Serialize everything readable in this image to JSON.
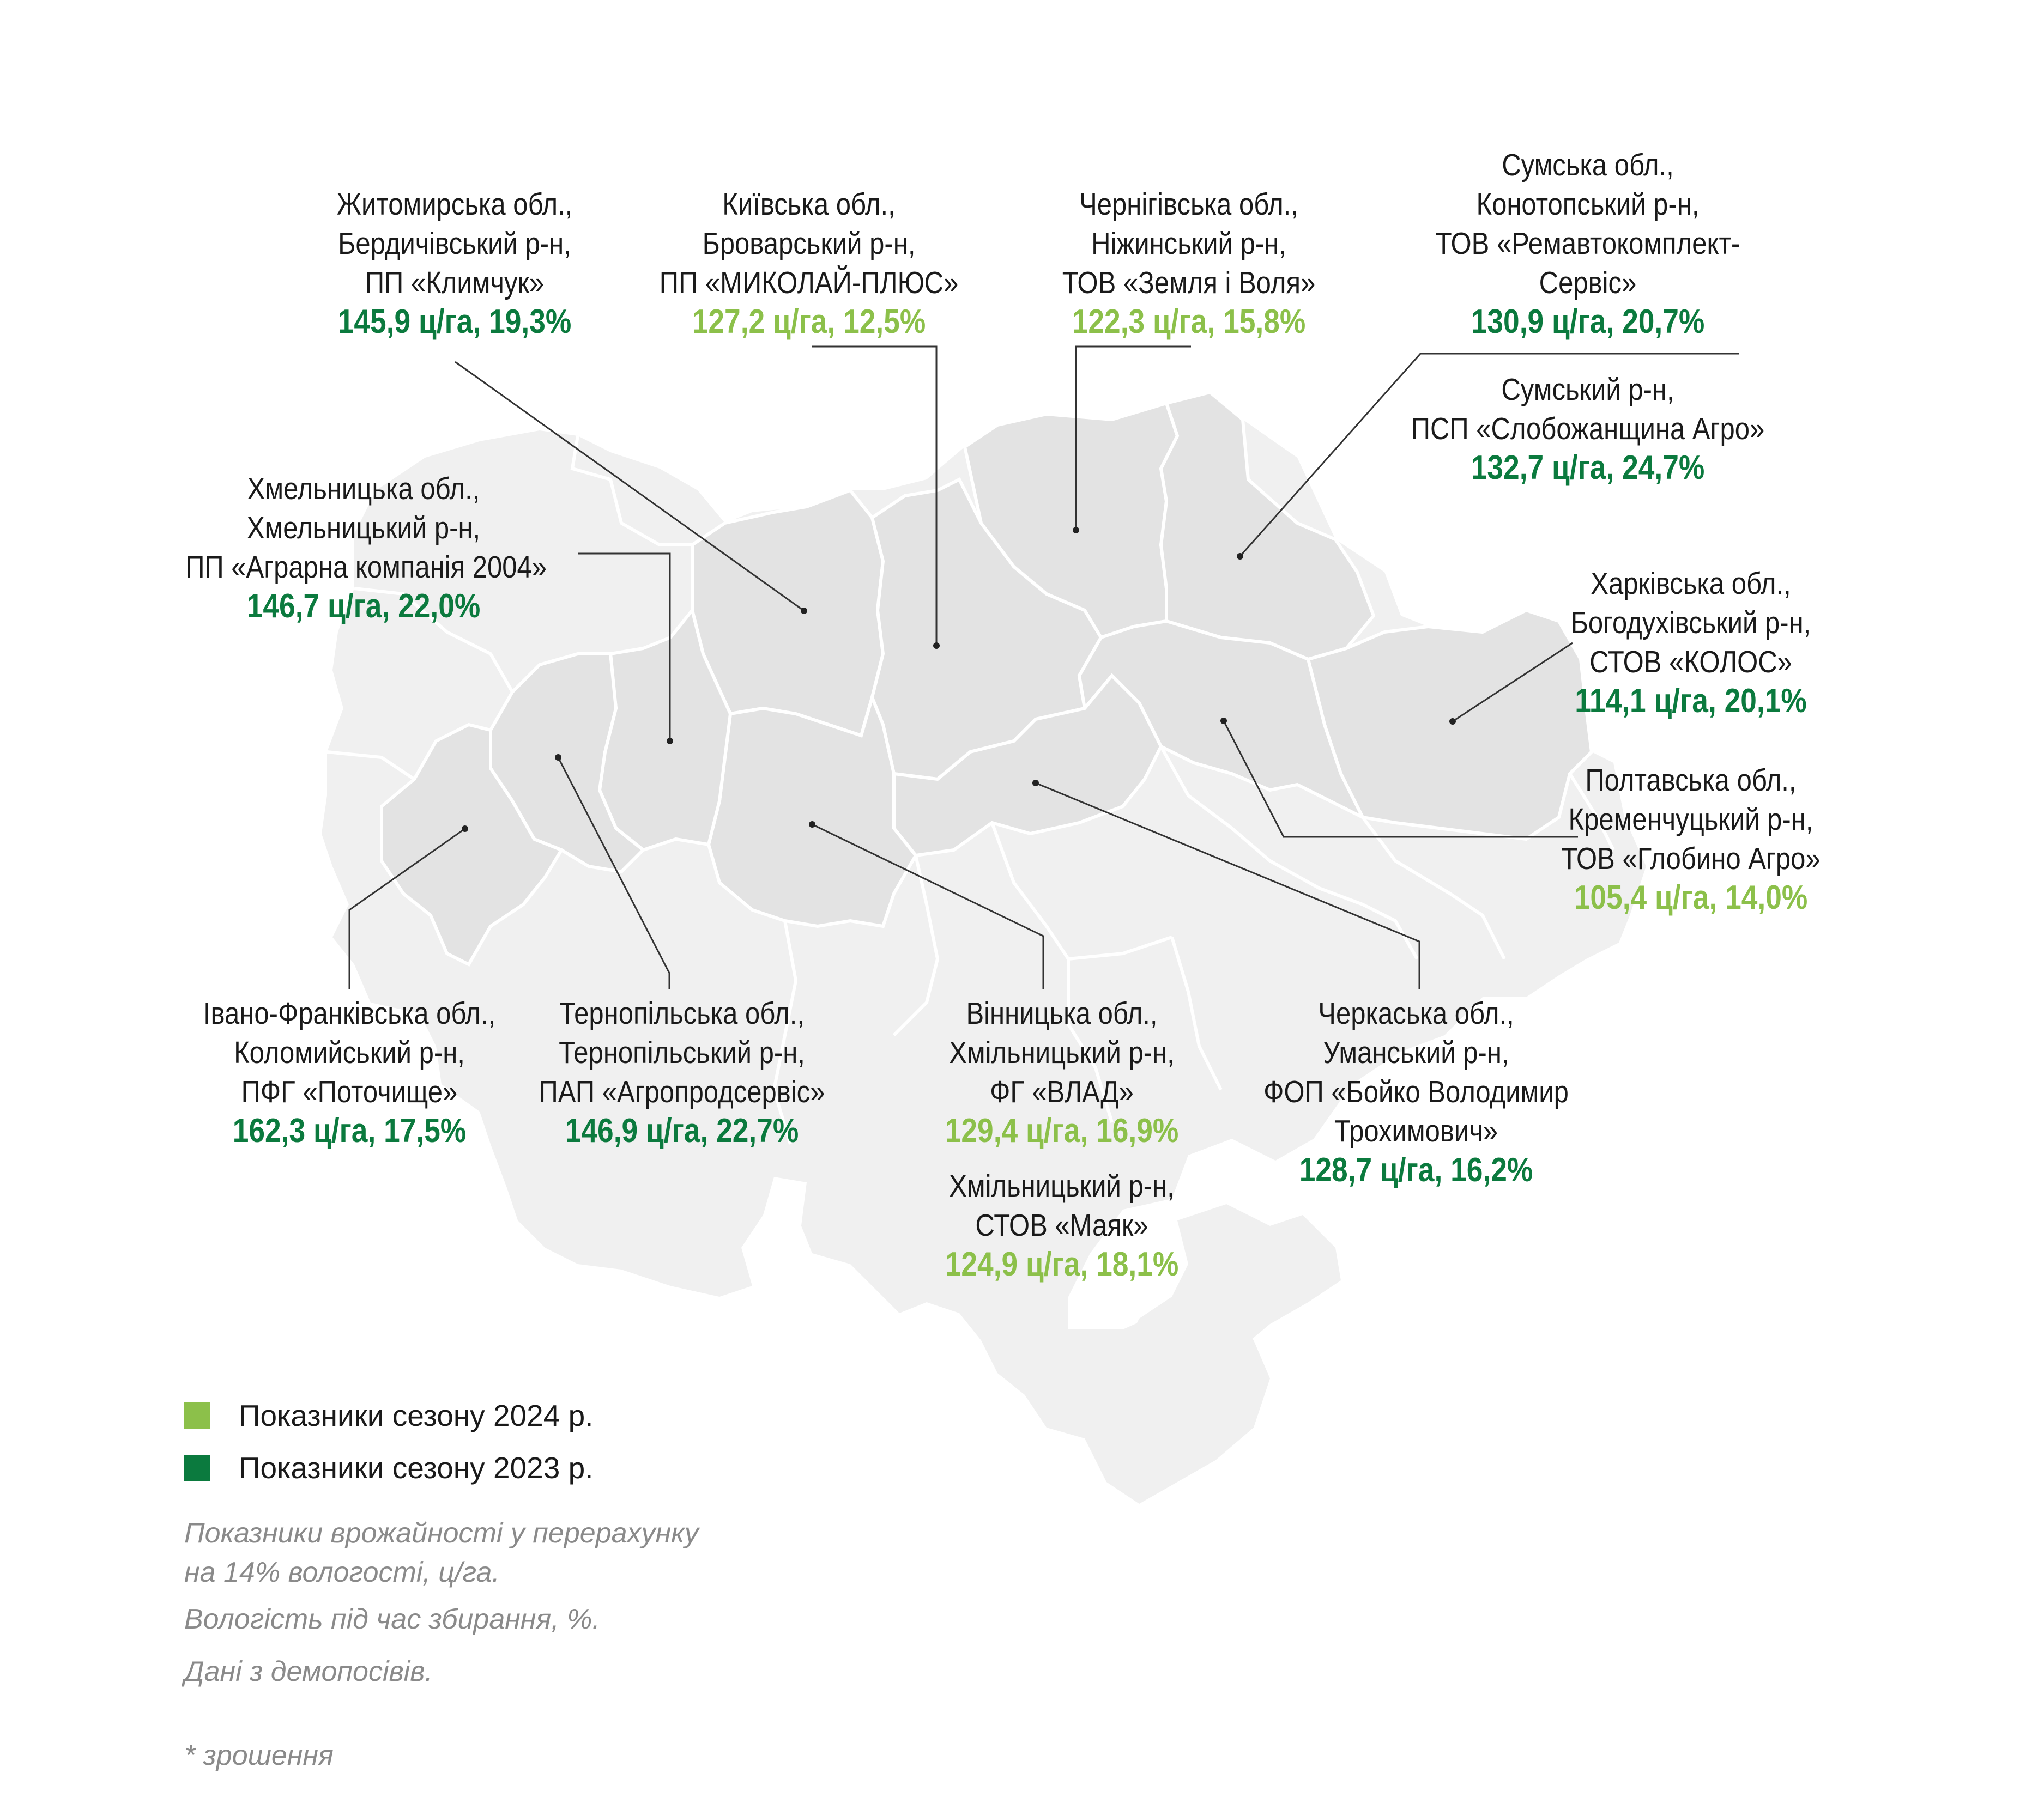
{
  "colors": {
    "season_2023": "#0b7a3e",
    "season_2024": "#8cc04a",
    "region_highlight": "#e3e3e3",
    "region_base": "#f0f0f0",
    "border": "#ffffff",
    "leader_line": "#333333"
  },
  "regions": [
    {
      "id": "zhytomyr",
      "lines": [
        "Житомирська обл.,",
        "Бердичівський р-н,",
        "ПП «Климчук»"
      ],
      "value": "145,9 ц/га, 19,3%",
      "season": "2023"
    },
    {
      "id": "kyiv",
      "lines": [
        "Київська обл.,",
        "Броварський р-н,",
        "ПП «МИКОЛАЙ-ПЛЮС»"
      ],
      "value": "127,2 ц/га, 12,5%",
      "season": "2024"
    },
    {
      "id": "chernihiv",
      "lines": [
        "Чернігівська обл.,",
        "Ніжинський р-н,",
        "ТОВ «Земля і Воля»"
      ],
      "value": "122,3 ц/га, 15,8%",
      "season": "2024"
    },
    {
      "id": "sumy-1",
      "lines": [
        "Сумська обл.,",
        "Конотопський р-н,",
        "ТОВ «Ремавтокомплект-",
        "Сервіс»"
      ],
      "value": "130,9 ц/га, 20,7%",
      "season": "2023"
    },
    {
      "id": "sumy-2",
      "lines": [
        "Сумський р-н,",
        "ПСП «Слобожанщина Агро»"
      ],
      "value": "132,7 ц/га, 24,7%",
      "season": "2023"
    },
    {
      "id": "khmelnytskyi",
      "lines": [
        "Хмельницька обл.,",
        "Хмельницький р-н,",
        "ПП «Аграрна компанія 2004»"
      ],
      "value": "146,7 ц/га, 22,0%",
      "season": "2023"
    },
    {
      "id": "kharkiv",
      "lines": [
        "Харківська обл.,",
        "Богодухівський р-н,",
        "СТОВ «КОЛОС»"
      ],
      "value": "114,1 ц/га, 20,1%",
      "season": "2023"
    },
    {
      "id": "poltava",
      "lines": [
        "Полтавська обл.,",
        "Кременчуцький р-н,",
        "ТОВ «Глобино Агро»"
      ],
      "value": "105,4 ц/га, 14,0%",
      "season": "2024"
    },
    {
      "id": "ivano-frankivsk",
      "lines": [
        "Івано-Франківська обл.,",
        "Коломийський р-н,",
        "ПФГ «Поточище»"
      ],
      "value": "162,3 ц/га, 17,5%",
      "season": "2023"
    },
    {
      "id": "ternopil",
      "lines": [
        "Тернопільська обл.,",
        "Тернопільський р-н,",
        "ПАП «Агропродсервіс»"
      ],
      "value": "146,9 ц/га, 22,7%",
      "season": "2023"
    },
    {
      "id": "vinnytsia-1",
      "lines": [
        "Вінницька обл.,",
        "Хмільницький р-н,",
        "ФГ «ВЛАД»"
      ],
      "value": "129,4 ц/га, 16,9%",
      "season": "2024"
    },
    {
      "id": "vinnytsia-2",
      "lines": [
        "Хмільницький р-н,",
        "СТОВ «Маяк»"
      ],
      "value": "124,9 ц/га, 18,1%",
      "season": "2024"
    },
    {
      "id": "cherkasy",
      "lines": [
        "Черкаська обл.,",
        "Уманський р-н,",
        "ФОП «Бойко Володимир",
        "Трохимович»"
      ],
      "value": "128,7 ц/га, 16,2%",
      "season": "2023"
    }
  ],
  "legend": [
    {
      "label": "Показники сезону 2024 р.",
      "color": "#8cc04a"
    },
    {
      "label": "Показники сезону 2023 р.",
      "color": "#0b7a3e"
    }
  ],
  "notes": [
    "Показники врожайності у перерахунку",
    "на 14% вологості, ц/га.",
    "Вологість під час збирання, %.",
    "Дані з демопосівів.",
    "* зрошення"
  ]
}
